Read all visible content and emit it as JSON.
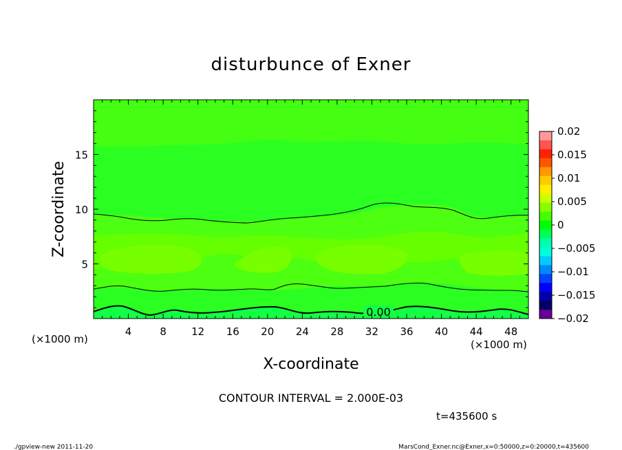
{
  "chart_data": {
    "type": "heatmap",
    "title": "disturbunce of Exner",
    "xlabel": "X-coordinate",
    "ylabel": "Z-coordinate",
    "x_unit": "(×1000 m)",
    "z_unit": "(×1000 m)",
    "xlim": [
      0,
      50
    ],
    "zlim": [
      0,
      20
    ],
    "x_ticks": [
      "4",
      "8",
      "12",
      "16",
      "20",
      "24",
      "28",
      "32",
      "36",
      "40",
      "44",
      "48"
    ],
    "z_ticks": [
      "5",
      "10",
      "15"
    ],
    "colorbar": {
      "ticks": [
        "0.02",
        "0.015",
        "0.01",
        "0.005",
        "0",
        "−0.005",
        "−0.01",
        "−0.015",
        "−0.02"
      ],
      "range": [
        -0.02,
        0.02
      ],
      "colors": [
        "#ff9999",
        "#ff5555",
        "#ff2200",
        "#ff5500",
        "#ff9900",
        "#ffcc00",
        "#ffee00",
        "#ccff00",
        "#88ff00",
        "#44ff00",
        "#00ff00",
        "#00ff55",
        "#00ffaa",
        "#00ffdd",
        "#00ccff",
        "#0088ff",
        "#0044ff",
        "#0000ff",
        "#0000aa",
        "#000066",
        "#660099"
      ]
    },
    "contour_interval": "CONTOUR INTERVAL = 2.000E-03",
    "contour_label": "0.00",
    "time_label": "t=435600 s",
    "footer_left": "./gpview-new   2011-11-20",
    "footer_right": "MarsCond_Exner.nc@Exner,x=0:50000,z=0:20000,t=435600"
  }
}
